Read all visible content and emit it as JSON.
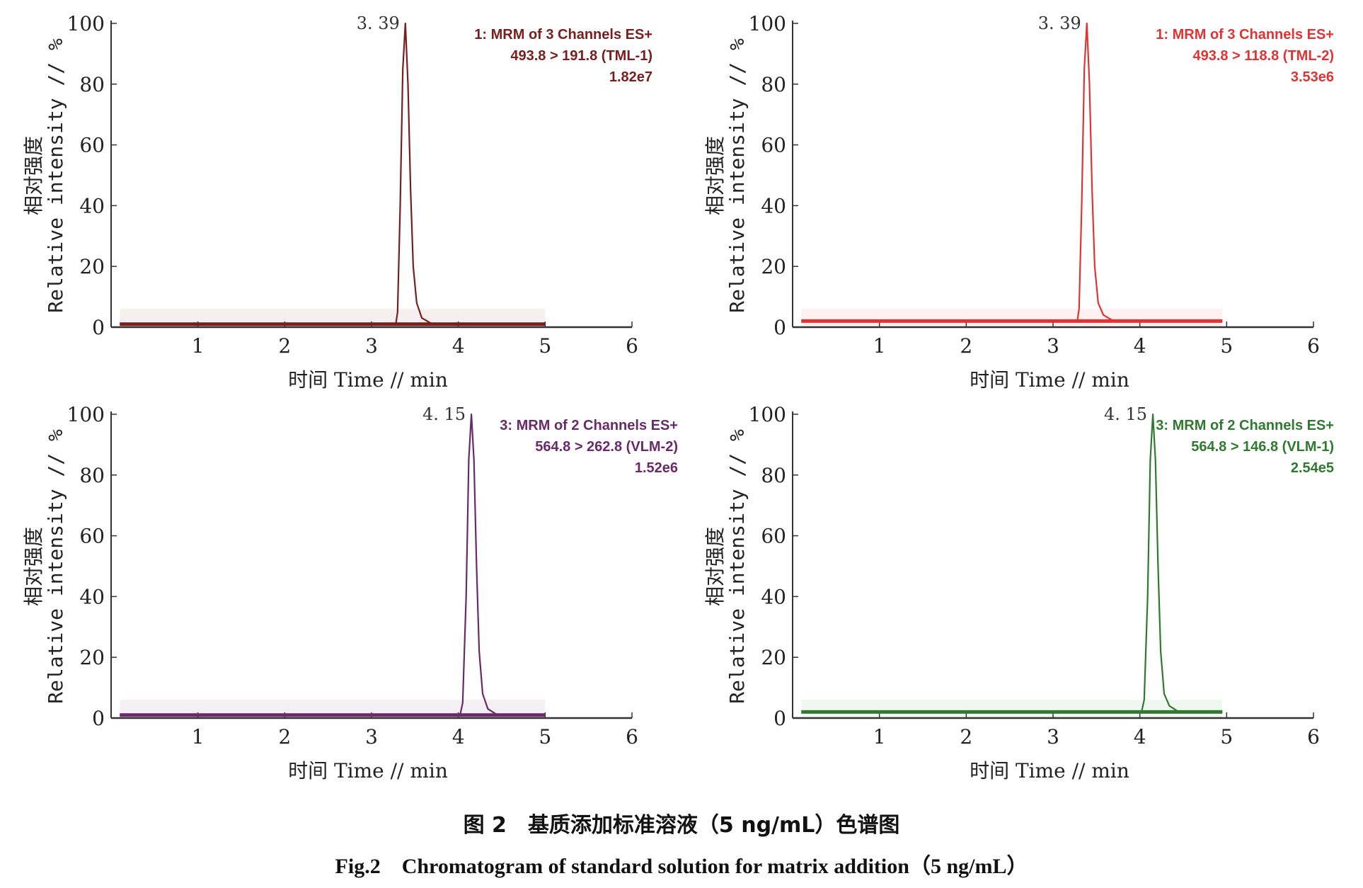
{
  "caption": {
    "zh": "图 2　基质添加标准溶液（5 ng/mL）色谱图",
    "en": "Fig.2　Chromatogram of standard solution for matrix addition（5 ng/mL）"
  },
  "chart_data": [
    {
      "type": "line",
      "title": "1: MRM of 3 Channels ES+",
      "transition": "493.8 > 191.8 (TML-1)",
      "intensity": "1.82e7",
      "peak_label": "3. 39",
      "peak_rt": 3.39,
      "xlabel": "时间  Time // min",
      "ylabel_zh": "相对强度",
      "ylabel_en": "Relative intensity // %",
      "xlim": [
        0,
        6
      ],
      "ylim": [
        0,
        100
      ],
      "x_ticks": [
        "1",
        "2",
        "3",
        "4",
        "5",
        "6"
      ],
      "y_ticks": [
        "0",
        "20",
        "40",
        "60",
        "80",
        "100"
      ],
      "baseline": 1,
      "trace_end": 5.0,
      "series": [
        {
          "x": [
            0.1,
            3.28,
            3.3,
            3.33,
            3.36,
            3.39,
            3.42,
            3.45,
            3.48,
            3.52,
            3.58,
            3.7,
            5.0
          ],
          "y": [
            1,
            1,
            5,
            40,
            85,
            100,
            80,
            45,
            20,
            8,
            3,
            1,
            1
          ]
        }
      ],
      "color": "#7a1d1d"
    },
    {
      "type": "line",
      "title": "1: MRM of 3 Channels ES+",
      "transition": "493.8 > 118.8 (TML-2)",
      "intensity": "3.53e6",
      "peak_label": "3. 39",
      "peak_rt": 3.39,
      "xlabel": "时间  Time // min",
      "ylabel_zh": "相对强度",
      "ylabel_en": "Relative intensity // %",
      "xlim": [
        0,
        6
      ],
      "ylim": [
        0,
        100
      ],
      "x_ticks": [
        "1",
        "2",
        "3",
        "4",
        "5",
        "6"
      ],
      "y_ticks": [
        "0",
        "20",
        "40",
        "60",
        "80",
        "100"
      ],
      "baseline": 2,
      "trace_end": 4.95,
      "series": [
        {
          "x": [
            0.1,
            3.28,
            3.3,
            3.33,
            3.36,
            3.39,
            3.42,
            3.45,
            3.48,
            3.52,
            3.58,
            3.7,
            4.95
          ],
          "y": [
            2,
            2,
            6,
            40,
            85,
            100,
            80,
            45,
            20,
            8,
            4,
            2,
            2
          ]
        }
      ],
      "color": "#e03434"
    },
    {
      "type": "line",
      "title": "3: MRM of 2 Channels ES+",
      "transition": "564.8 > 262.8 (VLM-2)",
      "intensity": "1.52e6",
      "peak_label": "4. 15",
      "peak_rt": 4.15,
      "xlabel": "时间  Time // min",
      "ylabel_zh": "相对强度",
      "ylabel_en": "Relative intensity // %",
      "xlim": [
        0,
        6
      ],
      "ylim": [
        0,
        100
      ],
      "x_ticks": [
        "1",
        "2",
        "3",
        "4",
        "5",
        "6"
      ],
      "y_ticks": [
        "0",
        "20",
        "40",
        "60",
        "80",
        "100"
      ],
      "baseline": 1,
      "trace_end": 5.0,
      "series": [
        {
          "x": [
            0.1,
            4.02,
            4.05,
            4.09,
            4.12,
            4.15,
            4.18,
            4.21,
            4.24,
            4.28,
            4.34,
            4.45,
            5.0
          ],
          "y": [
            1,
            1,
            5,
            40,
            85,
            100,
            85,
            50,
            22,
            8,
            3,
            1,
            1
          ]
        }
      ],
      "color": "#6a2a6a"
    },
    {
      "type": "line",
      "title": "3: MRM of 2 Channels ES+",
      "transition": "564.8 > 146.8 (VLM-1)",
      "intensity": "2.54e5",
      "peak_label": "4. 15",
      "peak_rt": 4.15,
      "xlabel": "时间  Time // min",
      "ylabel_zh": "相对强度",
      "ylabel_en": "Relative intensity // %",
      "xlim": [
        0,
        6
      ],
      "ylim": [
        0,
        100
      ],
      "x_ticks": [
        "1",
        "2",
        "3",
        "4",
        "5",
        "6"
      ],
      "y_ticks": [
        "0",
        "20",
        "40",
        "60",
        "80",
        "100"
      ],
      "baseline": 2,
      "trace_end": 4.95,
      "series": [
        {
          "x": [
            0.1,
            4.02,
            4.05,
            4.09,
            4.12,
            4.15,
            4.18,
            4.21,
            4.24,
            4.28,
            4.34,
            4.45,
            4.95
          ],
          "y": [
            2,
            2,
            6,
            40,
            85,
            100,
            85,
            50,
            22,
            8,
            4,
            2,
            2
          ]
        }
      ],
      "color": "#2f7a2f"
    }
  ]
}
